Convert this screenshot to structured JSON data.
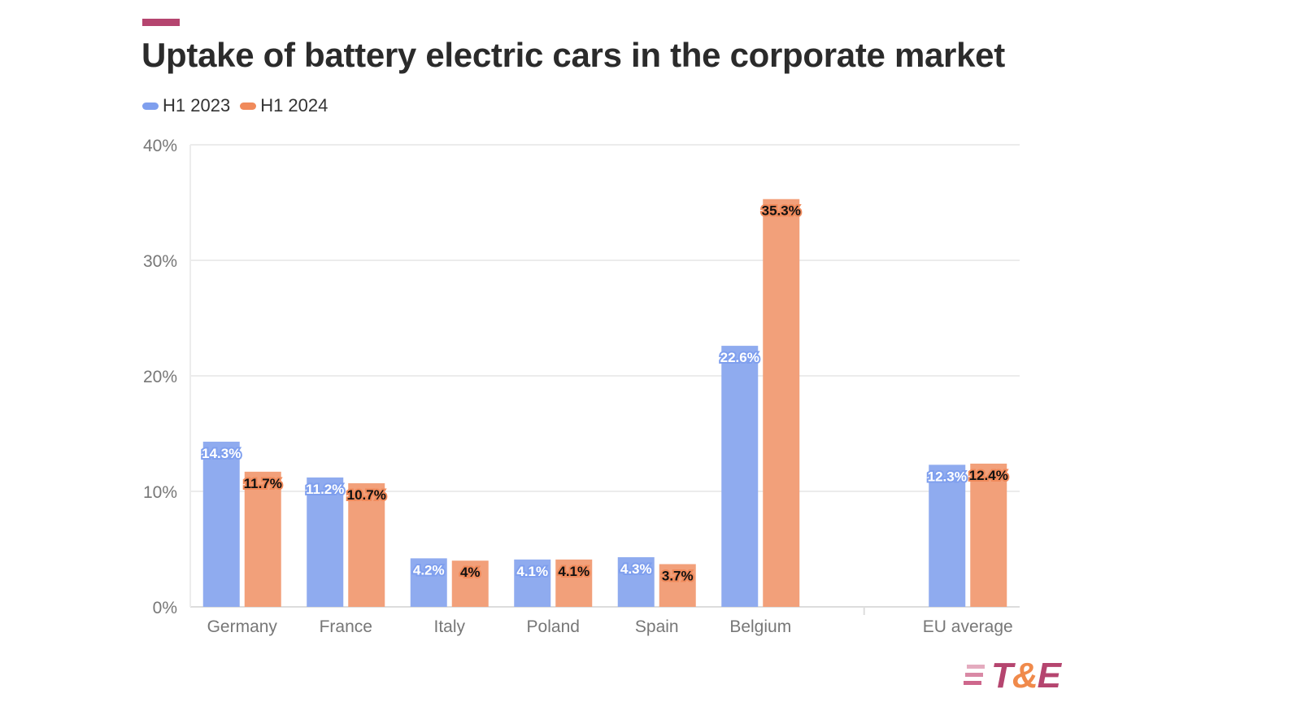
{
  "chart_data": {
    "type": "bar",
    "title": "Uptake of battery electric cars in the corporate market",
    "categories": [
      "Germany",
      "France",
      "Italy",
      "Poland",
      "Spain",
      "Belgium",
      "",
      "EU average"
    ],
    "series": [
      {
        "name": "H1 2023",
        "color": "#8fabef",
        "values": [
          14.3,
          11.2,
          4.2,
          4.1,
          4.3,
          22.6,
          null,
          12.3
        ],
        "labels": [
          "14.3%",
          "11.2%",
          "4.2%",
          "4.1%",
          "4.3%",
          "22.6%",
          "",
          "12.3%"
        ]
      },
      {
        "name": "H1 2024",
        "color": "#f2a07a",
        "values": [
          11.7,
          10.7,
          4.0,
          4.1,
          3.7,
          35.3,
          null,
          12.4
        ],
        "labels": [
          "11.7%",
          "10.7%",
          "4%",
          "4.1%",
          "3.7%",
          "35.3%",
          "",
          "12.4%"
        ]
      }
    ],
    "ylim": [
      0,
      40
    ],
    "yticks": [
      0,
      10,
      20,
      30,
      40
    ],
    "ytick_labels": [
      "0%",
      "10%",
      "20%",
      "30%",
      "40%"
    ],
    "xlabel": "",
    "ylabel": "",
    "grid": true,
    "legend_position": "top-left"
  },
  "legend_colors": {
    "H1 2023": "#7f9fee",
    "H1 2024": "#f08a5b"
  },
  "accent_color": "#b5456f",
  "logo": {
    "text_t": "T",
    "text_amp": "&",
    "text_e": "E"
  }
}
